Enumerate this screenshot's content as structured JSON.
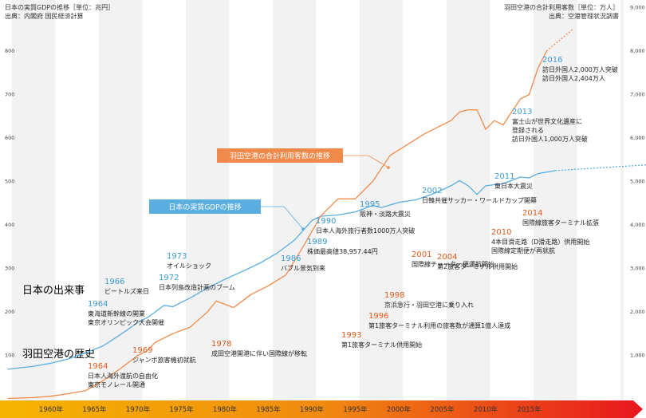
{
  "header": {
    "left_title": "日本の実質GDPの推移［単位：兆円］",
    "left_source": "出典：内閣府 国民経済計算",
    "right_title": "羽田空港の合計利用客数［単位：万人］",
    "right_source": "出典：空港管理状況調書"
  },
  "section_labels": {
    "japan": "日本の出来事",
    "haneda": "羽田空港の歴史"
  },
  "colors": {
    "gdp": "#5aaee0",
    "haneda": "#ef8a4b",
    "japan_text": "#4aa8de",
    "haneda_text": "#f0a070",
    "year_haneda": "#e05a1a",
    "year_japan": "#3b9ad8"
  },
  "chart_data": {
    "type": "line",
    "title": "",
    "xlabel": "",
    "x_ticks": [
      "1960年",
      "1965年",
      "1970年",
      "1975年",
      "1980年",
      "1985年",
      "1990年",
      "1995年",
      "2000年",
      "2005年",
      "2010年",
      "2015年"
    ],
    "left_axis": {
      "ticks": [
        "100",
        "200",
        "300",
        "400",
        "500",
        "600",
        "700",
        "800"
      ],
      "ylim": [
        0,
        900
      ]
    },
    "right_axis": {
      "ticks": [
        "1,000",
        "2,000",
        "3,000",
        "4,000",
        "5,000",
        "6,000",
        "7,000",
        "8,000",
        "9,000"
      ],
      "ylim": [
        0,
        9000
      ]
    },
    "grid": "alternating vertical bands per 5 years",
    "series": [
      {
        "name": "日本の実質GDPの推移",
        "axis": "left",
        "x": [
          1955,
          1958,
          1960,
          1962,
          1964,
          1966,
          1968,
          1970,
          1971,
          1972,
          1973,
          1974,
          1975,
          1976,
          1978,
          1980,
          1982,
          1984,
          1986,
          1988,
          1990,
          1991,
          1993,
          1995,
          1997,
          1998,
          2000,
          2002,
          2004,
          2006,
          2007,
          2008,
          2009,
          2010,
          2012,
          2014,
          2015,
          2016,
          2018
        ],
        "y": [
          68,
          75,
          82,
          92,
          106,
          122,
          148,
          176,
          186,
          200,
          215,
          212,
          222,
          232,
          255,
          275,
          293,
          312,
          335,
          365,
          410,
          420,
          423,
          430,
          445,
          440,
          452,
          458,
          472,
          490,
          502,
          490,
          470,
          490,
          495,
          510,
          508,
          518,
          525
        ]
      },
      {
        "name": "羽田空港の合計利用客数の推移",
        "axis": "right",
        "x": [
          1955,
          1958,
          1960,
          1962,
          1964,
          1966,
          1968,
          1970,
          1971,
          1972,
          1974,
          1976,
          1978,
          1979,
          1981,
          1983,
          1985,
          1987,
          1989,
          1991,
          1993,
          1995,
          1997,
          1999,
          2001,
          2003,
          2005,
          2006,
          2007,
          2008,
          2009,
          2010,
          2011,
          2012,
          2013,
          2014,
          2015,
          2016,
          2017
        ],
        "y": [
          10,
          30,
          60,
          120,
          190,
          420,
          700,
          1000,
          1100,
          1300,
          1500,
          1650,
          2000,
          2250,
          2100,
          2400,
          2600,
          2850,
          3500,
          4200,
          4600,
          4600,
          5000,
          5600,
          5850,
          6100,
          6300,
          6400,
          6600,
          6650,
          6650,
          6200,
          6400,
          6300,
          6600,
          6900,
          7000,
          7600,
          8000
        ]
      },
      {
        "name": "projection",
        "axis": "left",
        "style": "dotted",
        "x": [
          2018,
          2030
        ],
        "y": [
          525,
          540
        ]
      },
      {
        "name": "projection",
        "axis": "right",
        "style": "dotted",
        "x": [
          2017,
          2020
        ],
        "y": [
          8000,
          8500
        ]
      }
    ],
    "callouts": [
      {
        "label": "羽田空港の合計利用客数の推移",
        "color": "#ef8a4b"
      },
      {
        "label": "日本の実質GDPの推移",
        "color": "#5aaee0"
      }
    ]
  },
  "events_japan": [
    {
      "year": "1964",
      "lines": [
        "東海道新幹線の開業",
        "東京オリンピック大会開催"
      ]
    },
    {
      "year": "1966",
      "lines": [
        "ビートルズ来日"
      ]
    },
    {
      "year": "1972",
      "lines": [
        "日本列島改造計画のブーム"
      ]
    },
    {
      "year": "1973",
      "lines": [
        "オイルショック"
      ]
    },
    {
      "year": "1986",
      "lines": [
        "バブル景気到来"
      ]
    },
    {
      "year": "1989",
      "lines": [
        "株価最高値38,957.44円"
      ]
    },
    {
      "year": "1990",
      "lines": [
        "日本人海外旅行者数1000万人突破"
      ]
    },
    {
      "year": "1995",
      "lines": [
        "阪神・淡路大震災"
      ]
    },
    {
      "year": "2002",
      "lines": [
        "日韓共催サッカー・ワールドカップ開幕"
      ]
    },
    {
      "year": "2011",
      "lines": [
        "東日本大震災"
      ]
    },
    {
      "year": "2013",
      "lines": [
        "富士山が世界文化遺産に",
        "登録される",
        "訪日外国人1,000万人突破"
      ]
    },
    {
      "year": "2016",
      "lines": [
        "訪日外国人2,000万人突破",
        "訪日外国人2,404万人"
      ]
    }
  ],
  "events_haneda": [
    {
      "year": "1964",
      "lines": [
        "日本人海外渡航の自由化",
        "東京モノレール開通"
      ]
    },
    {
      "year": "1969",
      "lines": [
        "ジャンボ旅客機初就航"
      ]
    },
    {
      "year": "1978",
      "lines": [
        "成田空港開港に伴い国際線が移転"
      ]
    },
    {
      "year": "1993",
      "lines": [
        "第1旅客ターミナル供用開始"
      ]
    },
    {
      "year": "1996",
      "lines": [
        "第1旅客ターミナル利用の旅客数が通算1億人達成"
      ]
    },
    {
      "year": "1998",
      "lines": [
        "京浜急行・羽田空港に乗り入れ"
      ]
    },
    {
      "year": "2001",
      "lines": [
        "国際線チャーター便運航開始"
      ]
    },
    {
      "year": "2004",
      "lines": [
        "第2旅客ターミナル供用開始"
      ]
    },
    {
      "year": "2010",
      "lines": [
        "4本目滑走路（D滑走路）供用開始",
        "国際線定期便が再就航"
      ]
    },
    {
      "year": "2014",
      "lines": [
        "国際線旅客ターミナル拡張"
      ]
    }
  ]
}
